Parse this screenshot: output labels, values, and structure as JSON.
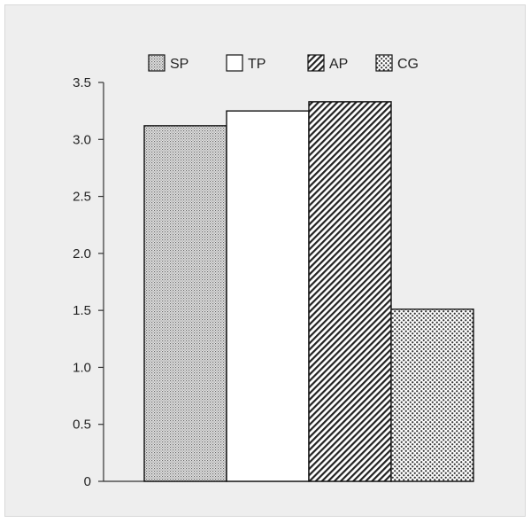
{
  "chart_data": {
    "type": "bar",
    "title": "",
    "xlabel": "",
    "ylabel": "",
    "categories": [
      "SP",
      "TP",
      "AP",
      "CG"
    ],
    "values": [
      3.12,
      3.25,
      3.33,
      1.51
    ],
    "ylim": [
      0,
      3.5
    ],
    "y_ticks": [
      "0",
      "0.5",
      "1.0",
      "1.5",
      "2.0",
      "2.5",
      "3.0",
      "3.5"
    ],
    "y_tick_values": [
      0,
      0.5,
      1.0,
      1.5,
      2.0,
      2.5,
      3.0,
      3.5
    ],
    "grid": false,
    "legend_position": "top",
    "series_fills": [
      "dense-dots",
      "plain-white",
      "diagonal-hatch",
      "coarse-dots"
    ],
    "colors": {
      "background": "#eeeeee",
      "bar_stroke": "#111111",
      "axis": "#333333"
    }
  }
}
